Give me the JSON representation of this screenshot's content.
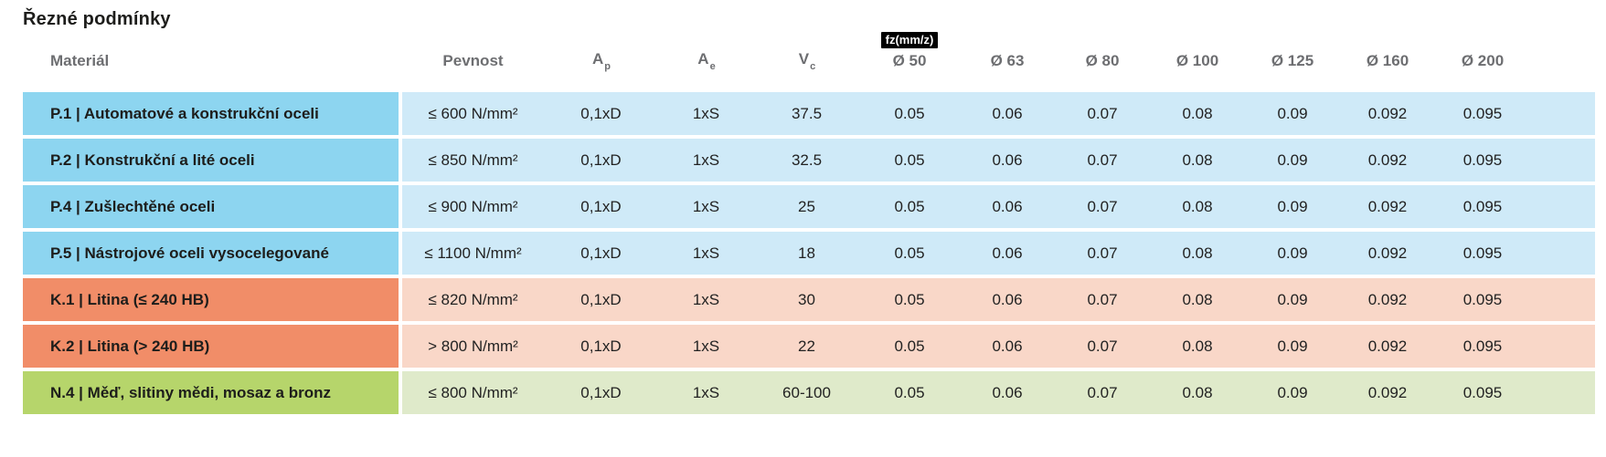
{
  "title": "Řezné podmínky",
  "table": {
    "headers": {
      "material": "Materiál",
      "pevnost": "Pevnost",
      "ap_base": "A",
      "ap_sub": "p",
      "ae_base": "A",
      "ae_sub": "e",
      "vc_base": "V",
      "vc_sub": "c",
      "fz_badge": "fz(mm/z)",
      "diameters": [
        "Ø 50",
        "Ø 63",
        "Ø 80",
        "Ø 100",
        "Ø 125",
        "Ø 160",
        "Ø 200"
      ]
    },
    "rows": [
      {
        "group": "steel",
        "material": "P.1 | Automatové a konstrukční oceli",
        "pevnost": "≤ 600 N/mm²",
        "ap": "0,1xD",
        "ae": "1xS",
        "vc": "37.5",
        "fz": [
          "0.05",
          "0.06",
          "0.07",
          "0.08",
          "0.09",
          "0.092",
          "0.095"
        ]
      },
      {
        "group": "steel",
        "material": "P.2 | Konstrukční a lité oceli",
        "pevnost": "≤ 850 N/mm²",
        "ap": "0,1xD",
        "ae": "1xS",
        "vc": "32.5",
        "fz": [
          "0.05",
          "0.06",
          "0.07",
          "0.08",
          "0.09",
          "0.092",
          "0.095"
        ]
      },
      {
        "group": "steel",
        "material": "P.4 | Zušlechtěné oceli",
        "pevnost": "≤ 900 N/mm²",
        "ap": "0,1xD",
        "ae": "1xS",
        "vc": "25",
        "fz": [
          "0.05",
          "0.06",
          "0.07",
          "0.08",
          "0.09",
          "0.092",
          "0.095"
        ]
      },
      {
        "group": "steel",
        "material": "P.5 | Nástrojové oceli vysocelegované",
        "pevnost": "≤ 1100 N/mm²",
        "ap": "0,1xD",
        "ae": "1xS",
        "vc": "18",
        "fz": [
          "0.05",
          "0.06",
          "0.07",
          "0.08",
          "0.09",
          "0.092",
          "0.095"
        ]
      },
      {
        "group": "cast-iron",
        "material": "K.1 | Litina (≤ 240 HB)",
        "pevnost": "≤ 820 N/mm²",
        "ap": "0,1xD",
        "ae": "1xS",
        "vc": "30",
        "fz": [
          "0.05",
          "0.06",
          "0.07",
          "0.08",
          "0.09",
          "0.092",
          "0.095"
        ]
      },
      {
        "group": "cast-iron",
        "material": "K.2 | Litina (> 240 HB)",
        "pevnost": "> 800 N/mm²",
        "ap": "0,1xD",
        "ae": "1xS",
        "vc": "22",
        "fz": [
          "0.05",
          "0.06",
          "0.07",
          "0.08",
          "0.09",
          "0.092",
          "0.095"
        ]
      },
      {
        "group": "non-ferrous",
        "material": "N.4 | Měď, slitiny mědi, mosaz a bronz",
        "pevnost": "≤ 800 N/mm²",
        "ap": "0,1xD",
        "ae": "1xS",
        "vc": "60-100",
        "fz": [
          "0.05",
          "0.06",
          "0.07",
          "0.08",
          "0.09",
          "0.092",
          "0.095"
        ]
      }
    ]
  },
  "colors": {
    "steel_dark": "#8dd5f0",
    "steel_light": "#cfeaf8",
    "cast_iron_dark": "#f18d68",
    "cast_iron_light": "#f9d7c8",
    "non_ferrous_dark": "#b6d56b",
    "non_ferrous_light": "#dfeaca",
    "badge_bg": "#000000",
    "badge_text": "#ffffff",
    "header_text": "#6d6e71",
    "title_text": "#1d1d1b"
  }
}
